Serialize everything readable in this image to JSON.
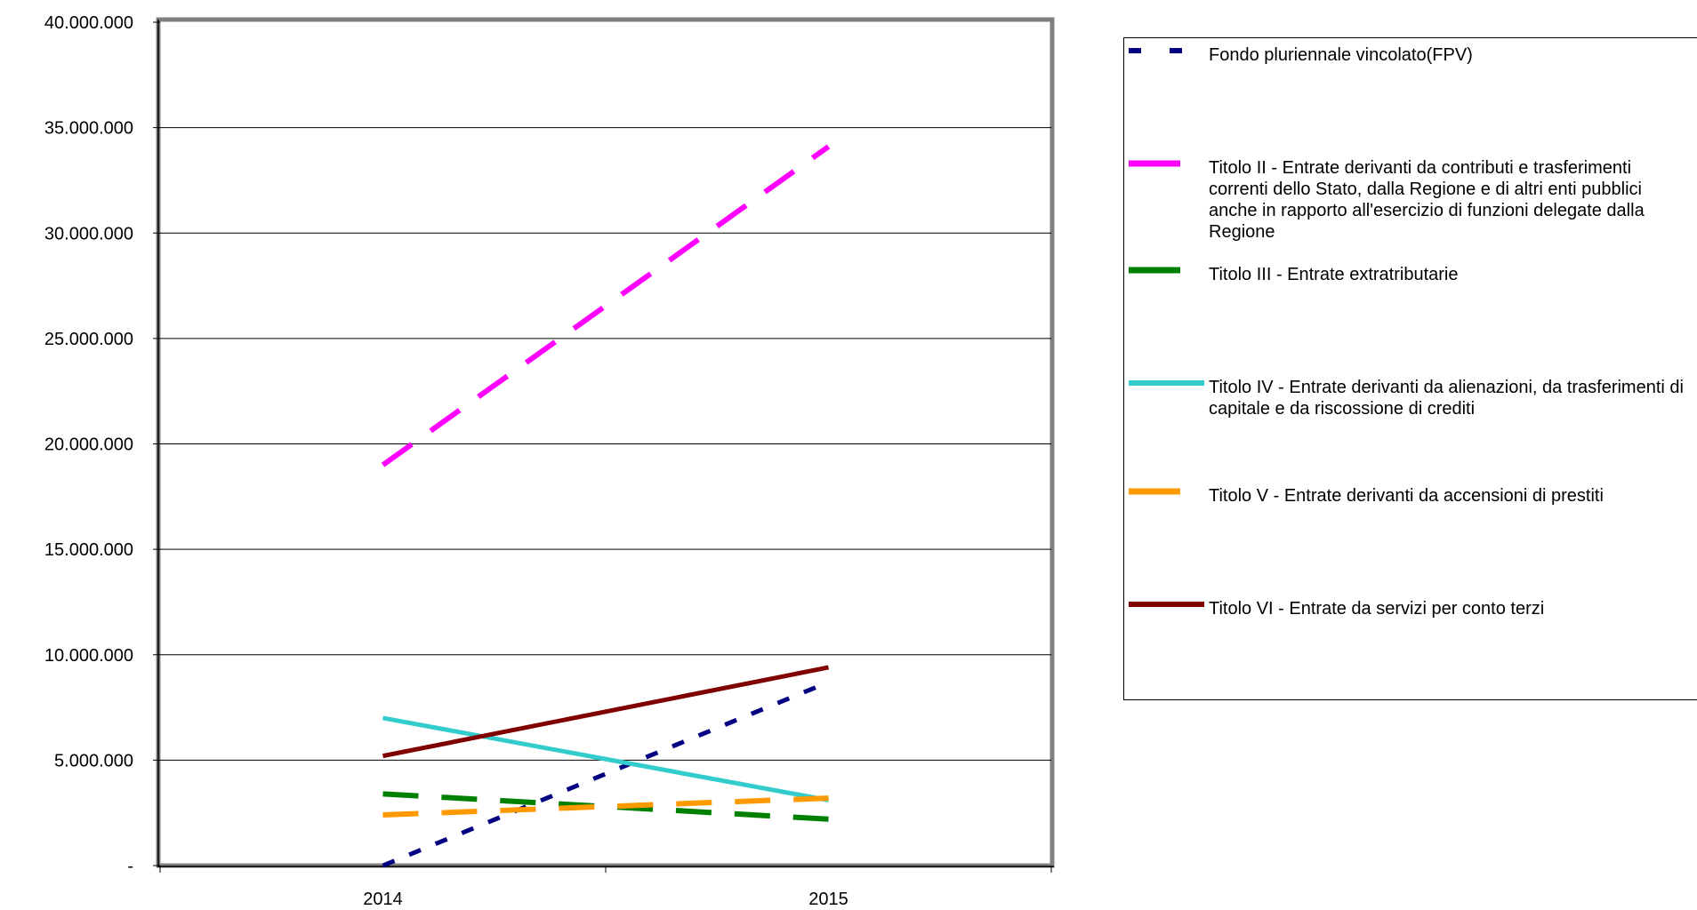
{
  "chart_data": {
    "type": "line",
    "categories": [
      "2014",
      "2015"
    ],
    "ylim": [
      0,
      40000000
    ],
    "yticks": [
      0,
      5000000,
      10000000,
      15000000,
      20000000,
      25000000,
      30000000,
      35000000,
      40000000
    ],
    "ytick_labels": [
      "-",
      "5.000.000",
      "10.000.000",
      "15.000.000",
      "20.000.000",
      "25.000.000",
      "30.000.000",
      "35.000.000",
      "40.000.000"
    ],
    "grid": true,
    "legend_position": "right",
    "series": [
      {
        "name": "Fondo pluriennale vincolato(FPV)",
        "values": [
          0,
          8700000
        ],
        "color": "#000080",
        "dash": "short-dash"
      },
      {
        "name": "Titolo II - Entrate derivanti da contributi e trasferimenti correnti dello Stato, dalla Regione e di altri enti pubblici anche in rapporto all'esercizio di funzioni delegate dalla Regione",
        "values": [
          19000000,
          34100000
        ],
        "color": "#ff00ff",
        "dash": "long-dash"
      },
      {
        "name": "Titolo III - Entrate extratributarie",
        "values": [
          3400000,
          2200000
        ],
        "color": "#008000",
        "dash": "long-dash"
      },
      {
        "name": "Titolo IV - Entrate derivanti da alienazioni, da trasferimenti di capitale e da riscossione di crediti",
        "values": [
          7000000,
          3100000
        ],
        "color": "#33cccc",
        "dash": "solid"
      },
      {
        "name": "Titolo V - Entrate derivanti da accensioni di prestiti",
        "values": [
          2400000,
          3200000
        ],
        "color": "#ff9900",
        "dash": "long-dash"
      },
      {
        "name": "Titolo VI - Entrate da servizi per conto terzi",
        "values": [
          5200000,
          9400000
        ],
        "color": "#800000",
        "dash": "solid"
      }
    ]
  }
}
